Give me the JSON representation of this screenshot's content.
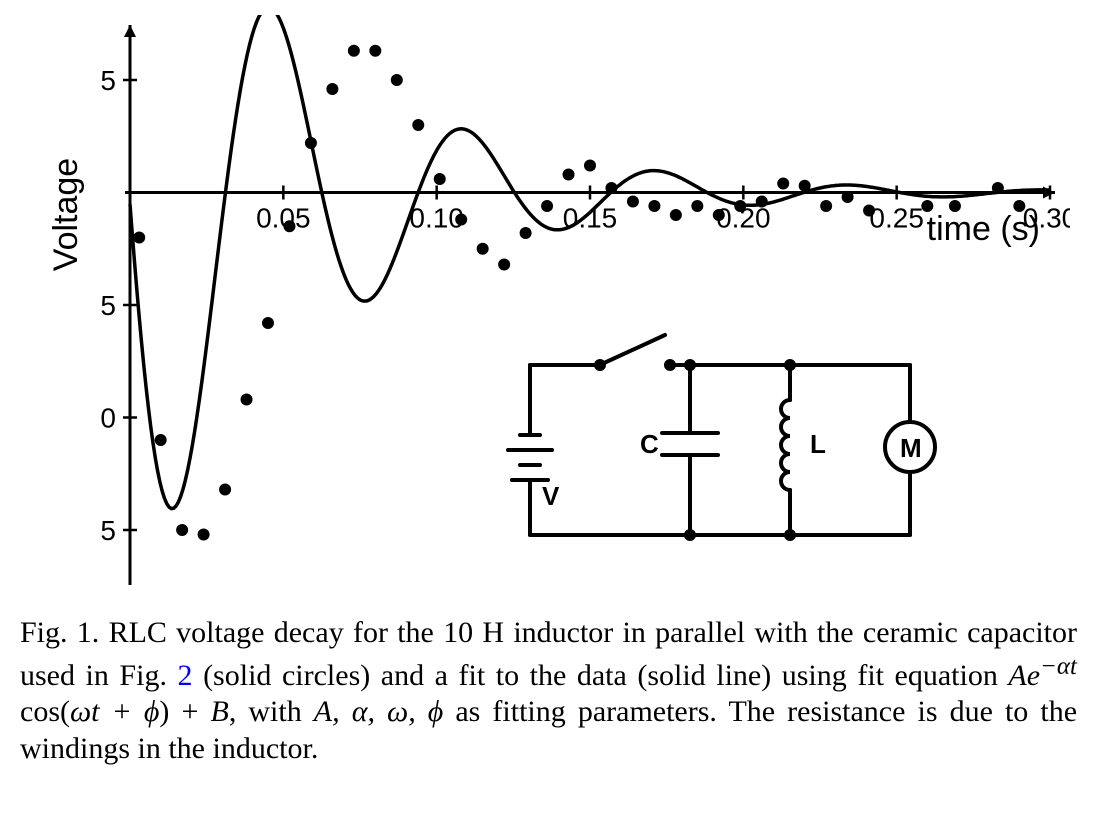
{
  "chart": {
    "type": "scatter_with_fit",
    "title": "",
    "ylabel": "Voltage",
    "xlabel": "time (s)",
    "label_fontsize": 34,
    "tick_fontsize": 28,
    "xlim": [
      0,
      0.3
    ],
    "ylim": [
      -17,
      7
    ],
    "xticks": [
      0.05,
      0.1,
      0.15,
      0.2,
      0.25,
      0.3
    ],
    "xtick_labels": [
      "0.05",
      "0.10",
      "0.15",
      "0.20",
      "0.25",
      "0.30"
    ],
    "yticks": [
      5,
      -5,
      -10,
      -15
    ],
    "ytick_labels": [
      "5",
      "- 5",
      "- 10",
      "- 15"
    ],
    "axis_color": "#000000",
    "axis_width": 3,
    "background_color": "#ffffff",
    "grid": false,
    "data_points": [
      {
        "x": 0.003,
        "y": -2.0
      },
      {
        "x": 0.01,
        "y": -11.0
      },
      {
        "x": 0.017,
        "y": -15.0
      },
      {
        "x": 0.024,
        "y": -15.2
      },
      {
        "x": 0.031,
        "y": -13.2
      },
      {
        "x": 0.038,
        "y": -9.2
      },
      {
        "x": 0.045,
        "y": -5.8
      },
      {
        "x": 0.052,
        "y": -1.5
      },
      {
        "x": 0.059,
        "y": 2.2
      },
      {
        "x": 0.066,
        "y": 4.6
      },
      {
        "x": 0.073,
        "y": 6.3
      },
      {
        "x": 0.08,
        "y": 6.3
      },
      {
        "x": 0.087,
        "y": 5.0
      },
      {
        "x": 0.094,
        "y": 3.0
      },
      {
        "x": 0.101,
        "y": 0.6
      },
      {
        "x": 0.108,
        "y": -1.2
      },
      {
        "x": 0.115,
        "y": -2.5
      },
      {
        "x": 0.122,
        "y": -3.2
      },
      {
        "x": 0.129,
        "y": -1.8
      },
      {
        "x": 0.136,
        "y": -0.6
      },
      {
        "x": 0.143,
        "y": 0.8
      },
      {
        "x": 0.15,
        "y": 1.2
      },
      {
        "x": 0.157,
        "y": 0.2
      },
      {
        "x": 0.164,
        "y": -0.4
      },
      {
        "x": 0.171,
        "y": -0.6
      },
      {
        "x": 0.178,
        "y": -1.0
      },
      {
        "x": 0.185,
        "y": -0.6
      },
      {
        "x": 0.192,
        "y": -1.0
      },
      {
        "x": 0.199,
        "y": -0.6
      },
      {
        "x": 0.206,
        "y": -0.4
      },
      {
        "x": 0.213,
        "y": 0.4
      },
      {
        "x": 0.22,
        "y": 0.3
      },
      {
        "x": 0.227,
        "y": -0.6
      },
      {
        "x": 0.234,
        "y": -0.2
      },
      {
        "x": 0.241,
        "y": -0.8
      },
      {
        "x": 0.26,
        "y": -0.6
      },
      {
        "x": 0.269,
        "y": -0.6
      },
      {
        "x": 0.283,
        "y": 0.2
      },
      {
        "x": 0.29,
        "y": -0.6
      }
    ],
    "marker_color": "#000000",
    "marker_radius": 6,
    "fit_curve": {
      "equation": "A*exp(-alpha*t)*cos(omega*t+phi)+B",
      "A": 18.0,
      "alpha": 17.0,
      "omega": 100.0,
      "phi": 1.6,
      "B": 0.0,
      "line_color": "#000000",
      "line_width": 3.5
    }
  },
  "circuit": {
    "labels": {
      "v": "V",
      "c": "C",
      "l": "L",
      "m": "M"
    },
    "wire_color": "#000000",
    "wire_width": 4
  },
  "caption": {
    "fig_label": "Fig. 1.",
    "text_pre": " RLC voltage decay for the 10 H inductor in parallel with the ceramic capacitor used in Fig. ",
    "fig_ref": "2",
    "text_mid": " (solid circles) and a fit to the data (solid line) using fit equation ",
    "eq_A": "Ae",
    "eq_exp": "−αt",
    "eq_space1": " ",
    "eq_cos": "cos(",
    "eq_arg": "ωt + ϕ",
    "eq_close": ") + ",
    "eq_B": "B",
    "eq_with": ", with ",
    "eq_params": "A, α, ω, ϕ",
    "text_post": " as fitting parameters. The resistance is due to the windings in the inductor.",
    "fontsize": 30,
    "link_color": "#0000ff"
  }
}
